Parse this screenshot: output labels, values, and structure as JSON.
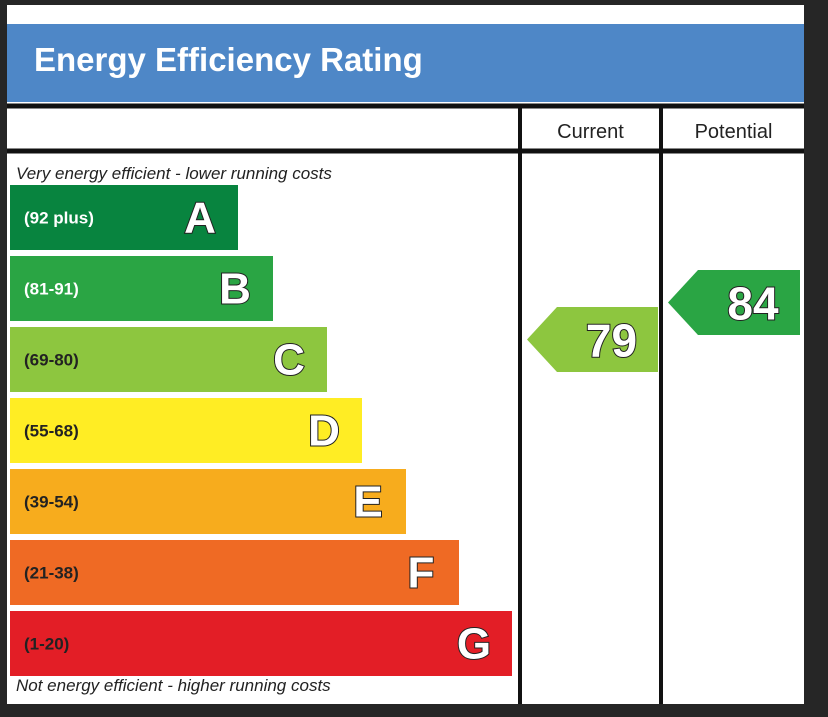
{
  "title": "Energy Efficiency Rating",
  "columns": {
    "current": "Current",
    "potential": "Potential"
  },
  "notes": {
    "top": "Very energy efficient - lower running costs",
    "bottom": "Not energy efficient - higher running costs"
  },
  "chart_data": {
    "type": "bar",
    "bands": [
      {
        "letter": "A",
        "range": "(92 plus)",
        "color": "#08843f",
        "min": 92
      },
      {
        "letter": "B",
        "range": "(81-91)",
        "color": "#2aa544",
        "min": 81
      },
      {
        "letter": "C",
        "range": "(69-80)",
        "color": "#8dc63f",
        "min": 69
      },
      {
        "letter": "D",
        "range": "(55-68)",
        "color": "#ffed24",
        "min": 55
      },
      {
        "letter": "E",
        "range": "(39-54)",
        "color": "#f7ac1d",
        "min": 39
      },
      {
        "letter": "F",
        "range": "(21-38)",
        "color": "#ef6a24",
        "min": 21
      },
      {
        "letter": "G",
        "range": "(1-20)",
        "color": "#e31e26",
        "min": 1
      }
    ],
    "current": {
      "value": 79,
      "band": "C",
      "color": "#8dc63f"
    },
    "potential": {
      "value": 84,
      "band": "B",
      "color": "#2aa544"
    }
  }
}
